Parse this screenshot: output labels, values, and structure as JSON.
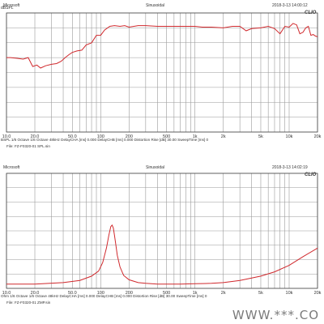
{
  "watermark": "WWW.***.CO",
  "chart_data": [
    {
      "type": "line",
      "header": {
        "left": "Microsoft",
        "center": "Sinusoidal",
        "right": "2018-3-13 14:00:12"
      },
      "brand": "CLIO",
      "ylabel_units": [
        "dBSPL"
      ],
      "y_axis_ticks": [
        "",
        "",
        "",
        "",
        "",
        "",
        "",
        ""
      ],
      "x_ticks": [
        "10.0",
        "20.0",
        "50.0",
        "100",
        "200",
        "500",
        "1k",
        "2k",
        "5k",
        "10k",
        "20k"
      ],
      "x_scale": "log",
      "xlim": [
        10,
        20000
      ],
      "ylim": [
        0,
        8
      ],
      "grid": true,
      "footer": [
        "BSPL   1/6 Octave   1/6 Octave   48kHz   DelayCHA [ms] 0.000   DelayCHB [ms] 0.000   Distortion Rise [dB] 30.00   SweepTime [ms] 0",
        "File: FZ-F0320-01 SPL.sin"
      ],
      "series": [
        {
          "color": "#d0282c",
          "x": [
            10,
            11,
            13,
            15,
            17,
            19,
            21,
            23,
            26,
            30,
            34,
            38,
            42,
            46,
            50,
            56,
            63,
            70,
            80,
            90,
            100,
            110,
            125,
            140,
            160,
            180,
            200,
            250,
            300,
            400,
            500,
            600,
            800,
            1000,
            1200,
            1500,
            2000,
            2500,
            3000,
            3500,
            4000,
            5000,
            6000,
            7000,
            8000,
            9000,
            10000,
            11000,
            12000,
            13000,
            14000,
            15000,
            16000,
            17000,
            18000,
            19000,
            20000
          ],
          "values": [
            5.0,
            5.0,
            4.95,
            4.9,
            5.0,
            4.4,
            4.5,
            4.3,
            4.45,
            4.55,
            4.6,
            4.75,
            5.0,
            5.2,
            5.35,
            5.45,
            5.5,
            5.85,
            6.0,
            6.5,
            6.5,
            6.85,
            7.1,
            7.15,
            7.1,
            7.15,
            7.05,
            7.15,
            7.15,
            7.1,
            7.1,
            7.1,
            7.1,
            7.1,
            7.05,
            7.05,
            7.0,
            7.1,
            7.1,
            6.8,
            6.95,
            7.0,
            7.1,
            6.95,
            6.6,
            7.1,
            7.05,
            7.3,
            7.2,
            6.6,
            6.7,
            7.0,
            7.1,
            6.5,
            6.55,
            6.45,
            6.4
          ]
        }
      ]
    },
    {
      "type": "line",
      "header": {
        "left": "Microsoft",
        "center": "Sinusoidal",
        "right": "2018-3-13 14:02:19"
      },
      "brand": "CLIO",
      "ylabel_units": [],
      "y_axis_ticks": [
        "",
        "",
        "",
        "",
        "",
        "",
        "",
        ""
      ],
      "x_ticks": [
        "10.0",
        "20.0",
        "50.0",
        "100",
        "200",
        "500",
        "1k",
        "2k",
        "5k",
        "10k",
        "20k"
      ],
      "x_scale": "log",
      "xlim": [
        10,
        20000
      ],
      "ylim": [
        0,
        8
      ],
      "grid": true,
      "footer": [
        "Ohm   1/6 Octave   1/6 Octave   48kHz   DelayCHA [ms] 0.000   DelayCHB [ms] 0.000   Distortion Rise [dB] 30.00   SweepTime [ms] 0",
        "File: FZ-F0320-01 ZMP.sin"
      ],
      "series": [
        {
          "color": "#d0282c",
          "x": [
            10,
            20,
            40,
            60,
            80,
            95,
            105,
            115,
            122,
            128,
            132,
            136,
            140,
            145,
            150,
            160,
            175,
            200,
            250,
            300,
            400,
            500,
            700,
            1000,
            1500,
            2000,
            3000,
            5000,
            7000,
            10000,
            14000,
            20000
          ],
          "values": [
            0.3,
            0.3,
            0.4,
            0.55,
            0.85,
            1.2,
            1.8,
            2.8,
            3.7,
            4.3,
            4.4,
            4.2,
            3.7,
            3.0,
            2.3,
            1.5,
            0.9,
            0.6,
            0.4,
            0.35,
            0.3,
            0.3,
            0.3,
            0.32,
            0.35,
            0.4,
            0.55,
            0.85,
            1.15,
            1.6,
            2.2,
            2.8
          ]
        }
      ]
    }
  ]
}
